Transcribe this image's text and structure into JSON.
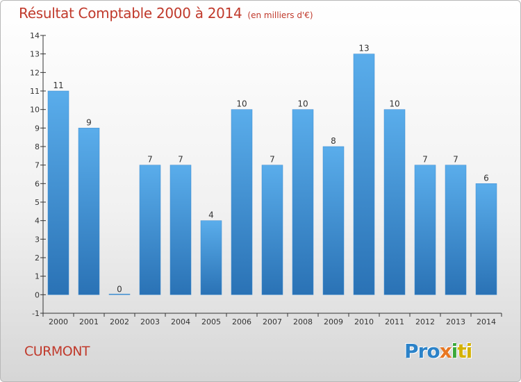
{
  "chart_data": {
    "type": "bar",
    "title": "Résultat Comptable 2000 à 2014",
    "subtitle": "(en milliers d'€)",
    "xlabel": "",
    "ylabel": "",
    "categories": [
      "2000",
      "2001",
      "2002",
      "2003",
      "2004",
      "2005",
      "2006",
      "2007",
      "2008",
      "2009",
      "2010",
      "2011",
      "2012",
      "2013",
      "2014"
    ],
    "values": [
      11,
      9,
      0,
      7,
      7,
      4,
      10,
      7,
      10,
      8,
      13,
      10,
      7,
      7,
      6
    ],
    "data_labels": [
      "11",
      "9",
      "0",
      "7",
      "7",
      "4",
      "10",
      "7",
      "10",
      "8",
      "13",
      "10",
      "7",
      "7",
      "6"
    ],
    "ylim": [
      -1,
      14
    ],
    "yticks": [
      -1,
      0,
      1,
      2,
      3,
      4,
      5,
      6,
      7,
      8,
      9,
      10,
      11,
      12,
      13,
      14
    ],
    "ytick_labels": [
      "-1",
      "0",
      "1",
      "2",
      "3",
      "4",
      "5",
      "6",
      "7",
      "8",
      "9",
      "10",
      "11",
      "12",
      "13",
      "14"
    ],
    "grid": false,
    "legend": "none",
    "bar_color": "#4d9fe0",
    "bar_color_dark": "#2a72b5"
  },
  "commune": "CURMONT",
  "logo": {
    "part1": "Pro",
    "part2": "x",
    "part3": "i",
    "part4": "ti",
    "colors": [
      "#2b82c8",
      "#e87722",
      "#3aa83a",
      "#d4b200"
    ]
  }
}
